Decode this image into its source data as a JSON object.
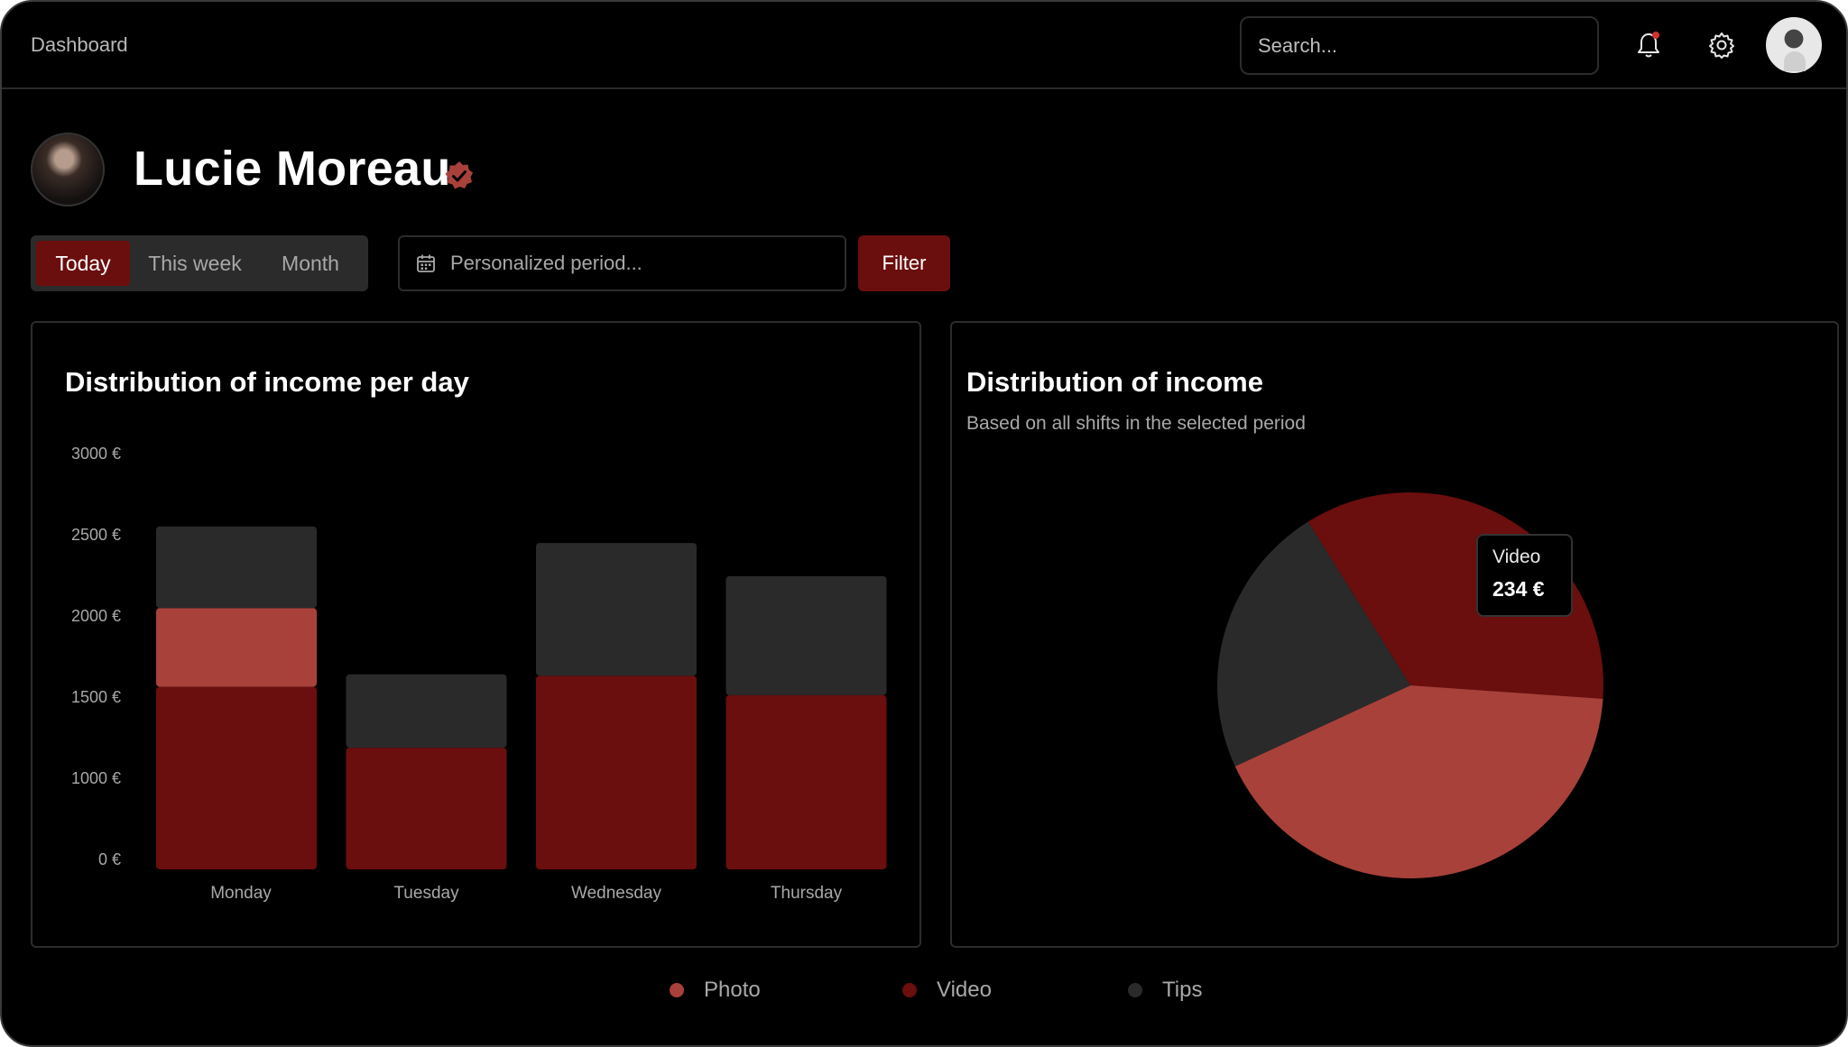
{
  "topbar": {
    "breadcrumb": "Dashboard",
    "search_placeholder": "Search...",
    "icons": [
      "bell-icon",
      "gear-icon",
      "avatar"
    ]
  },
  "profile": {
    "name": "Lucie Moreau",
    "verified": true
  },
  "period_tabs": [
    {
      "label": "Today",
      "active": true
    },
    {
      "label": "This week",
      "active": false
    },
    {
      "label": "Month",
      "active": false
    }
  ],
  "period_input": {
    "placeholder": "Personalized period..."
  },
  "filter_label": "Filter",
  "colors": {
    "photo": "#a8413a",
    "video": "#6b0e0e",
    "tips": "#2a2a2b",
    "accent": "#6b0e0e"
  },
  "chart_data": [
    {
      "type": "bar",
      "title": "Distribution of income per day",
      "categories": [
        "Monday",
        "Tuesday",
        "Wednesday",
        "Thursday"
      ],
      "series": [
        {
          "name": "Video",
          "values": [
            1320,
            880,
            1400,
            1260
          ]
        },
        {
          "name": "Photo",
          "values": [
            570,
            0,
            0,
            0
          ]
        },
        {
          "name": "Tips",
          "values": [
            590,
            530,
            960,
            860
          ]
        }
      ],
      "y_ticks": [
        "3000 €",
        "2500 €",
        "2000 €",
        "1500 €",
        "1000 €",
        "0 €"
      ],
      "ylim": [
        0,
        3000
      ],
      "stacked": true,
      "grid": false
    },
    {
      "type": "pie",
      "title": "Distribution of income",
      "subtitle": "Based on all shifts in the selected period",
      "slices": [
        {
          "name": "Video",
          "value": 35
        },
        {
          "name": "Photo",
          "value": 42
        },
        {
          "name": "Tips",
          "value": 23
        }
      ],
      "tooltip": {
        "label": "Video",
        "value": "234 €"
      }
    }
  ],
  "legend": [
    {
      "name": "Photo"
    },
    {
      "name": "Video"
    },
    {
      "name": "Tips"
    }
  ]
}
